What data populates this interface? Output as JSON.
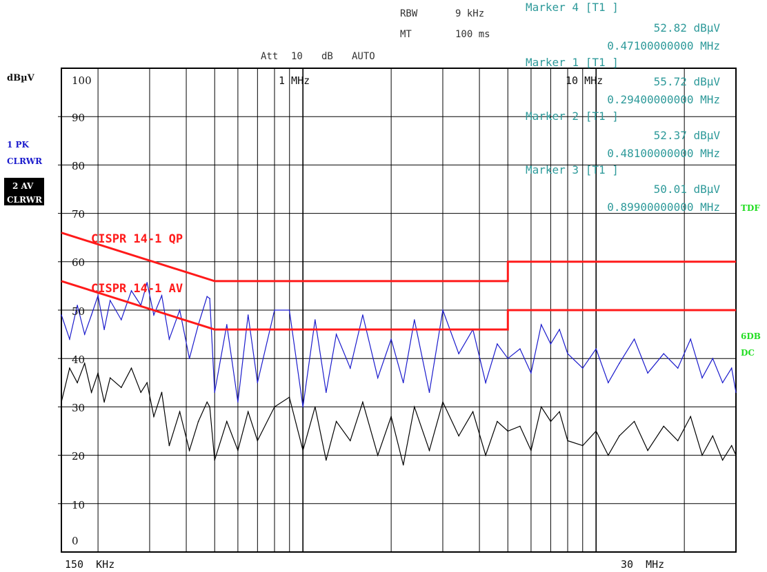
{
  "header": {
    "rbw_label": "RBW",
    "rbw_value": "9 kHz",
    "mt_label": "MT",
    "mt_value": "100 ms",
    "att_label": "Att",
    "att_value": "10",
    "att_unit": "dB",
    "att_mode": "AUTO"
  },
  "markers": [
    {
      "title": "Marker 4 [T1 ]",
      "level": "52.82 dBµV",
      "freq": "0.47100000000 MHz"
    },
    {
      "title": "Marker 1 [T1 ]",
      "level": "55.72 dBµV",
      "freq": "0.29400000000 MHz"
    },
    {
      "title": "Marker 2 [T1 ]",
      "level": "52.37 dBµV",
      "freq": "0.48100000000 MHz"
    },
    {
      "title": "Marker 3 [T1 ]",
      "level": "50.01 dBµV",
      "freq": "0.89900000000 MHz"
    }
  ],
  "side": {
    "unit": "dBµV",
    "trace1_line1": "1 PK",
    "trace1_line2": "CLRWR",
    "trace2_line1": "2 AV",
    "trace2_line2": "CLRWR",
    "tdf": "TDF",
    "sixdb_line1": "6DB",
    "sixdb_line2": "DC"
  },
  "colors": {
    "trace_pk": "#1a1acc",
    "trace_av": "#000000",
    "limit": "#ff1a1a",
    "marker_text": "#2e9a9a",
    "grid": "#000000",
    "side_green": "#22dd22"
  },
  "chart_data": {
    "type": "line",
    "title": "",
    "xlabel": "",
    "ylabel": "dBµV",
    "x_scale": "log",
    "xlim": [
      0.15,
      30
    ],
    "ylim": [
      0,
      100
    ],
    "grid": true,
    "ytick_labels": [
      "100",
      "90",
      "80",
      "70",
      "60",
      "50",
      "40",
      "30",
      "20",
      "10",
      "0"
    ],
    "ytick_values": [
      100,
      90,
      80,
      70,
      60,
      50,
      40,
      30,
      20,
      10,
      0
    ],
    "xtick_labels": [
      {
        "text": "1 MHz",
        "value": 1
      },
      {
        "text": "10 MHz",
        "value": 10
      }
    ],
    "x_start_label": "150  KHz",
    "x_end_label": "30  MHz",
    "limit_lines": [
      {
        "name": "CISPR 14-1 QP",
        "points": [
          [
            0.15,
            66
          ],
          [
            0.5,
            56
          ],
          [
            5,
            56
          ],
          [
            5,
            60
          ],
          [
            30,
            60
          ]
        ]
      },
      {
        "name": "CISPR 14-1 AV",
        "points": [
          [
            0.15,
            56
          ],
          [
            0.5,
            46
          ],
          [
            5,
            46
          ],
          [
            5,
            50
          ],
          [
            30,
            50
          ]
        ]
      }
    ],
    "series": [
      {
        "name": "1 PK",
        "x": [
          0.15,
          0.16,
          0.17,
          0.18,
          0.19,
          0.2,
          0.21,
          0.22,
          0.24,
          0.26,
          0.28,
          0.294,
          0.31,
          0.33,
          0.35,
          0.38,
          0.41,
          0.44,
          0.471,
          0.481,
          0.5,
          0.55,
          0.6,
          0.65,
          0.7,
          0.8,
          0.899,
          1.0,
          1.1,
          1.2,
          1.3,
          1.45,
          1.6,
          1.8,
          2.0,
          2.2,
          2.4,
          2.7,
          3.0,
          3.4,
          3.8,
          4.2,
          4.6,
          5.0,
          5.5,
          6.0,
          6.5,
          7.0,
          7.5,
          8.0,
          9.0,
          10.0,
          11.0,
          12.0,
          13.5,
          15.0,
          17.0,
          19.0,
          21.0,
          23.0,
          25.0,
          27.0,
          29.0,
          30.0
        ],
        "y": [
          49,
          44,
          51,
          45,
          49,
          53,
          46,
          52,
          48,
          54,
          51,
          55.7,
          49,
          53,
          44,
          50,
          40,
          47,
          52.8,
          52.4,
          33,
          47,
          31,
          49,
          35,
          50,
          50,
          30,
          48,
          33,
          45,
          38,
          49,
          36,
          44,
          35,
          48,
          33,
          50,
          41,
          46,
          35,
          43,
          40,
          42,
          37,
          47,
          43,
          46,
          41,
          38,
          42,
          35,
          39,
          44,
          37,
          41,
          38,
          44,
          36,
          40,
          35,
          38,
          33
        ]
      },
      {
        "name": "2 AV",
        "x": [
          0.15,
          0.16,
          0.17,
          0.18,
          0.19,
          0.2,
          0.21,
          0.22,
          0.24,
          0.26,
          0.28,
          0.294,
          0.31,
          0.33,
          0.35,
          0.38,
          0.41,
          0.44,
          0.471,
          0.481,
          0.5,
          0.55,
          0.6,
          0.65,
          0.7,
          0.8,
          0.899,
          1.0,
          1.1,
          1.2,
          1.3,
          1.45,
          1.6,
          1.8,
          2.0,
          2.2,
          2.4,
          2.7,
          3.0,
          3.4,
          3.8,
          4.2,
          4.6,
          5.0,
          5.5,
          6.0,
          6.5,
          7.0,
          7.5,
          8.0,
          9.0,
          10.0,
          11.0,
          12.0,
          13.5,
          15.0,
          17.0,
          19.0,
          21.0,
          23.0,
          25.0,
          27.0,
          29.0,
          30.0
        ],
        "y": [
          31,
          38,
          35,
          39,
          33,
          37,
          31,
          36,
          34,
          38,
          33,
          35,
          28,
          33,
          22,
          29,
          21,
          27,
          31,
          30,
          19,
          27,
          21,
          29,
          23,
          30,
          32,
          21,
          30,
          19,
          27,
          23,
          31,
          20,
          28,
          18,
          30,
          21,
          31,
          24,
          29,
          20,
          27,
          25,
          26,
          21,
          30,
          27,
          29,
          23,
          22,
          25,
          20,
          24,
          27,
          21,
          26,
          23,
          28,
          20,
          24,
          19,
          22,
          20
        ]
      }
    ]
  }
}
